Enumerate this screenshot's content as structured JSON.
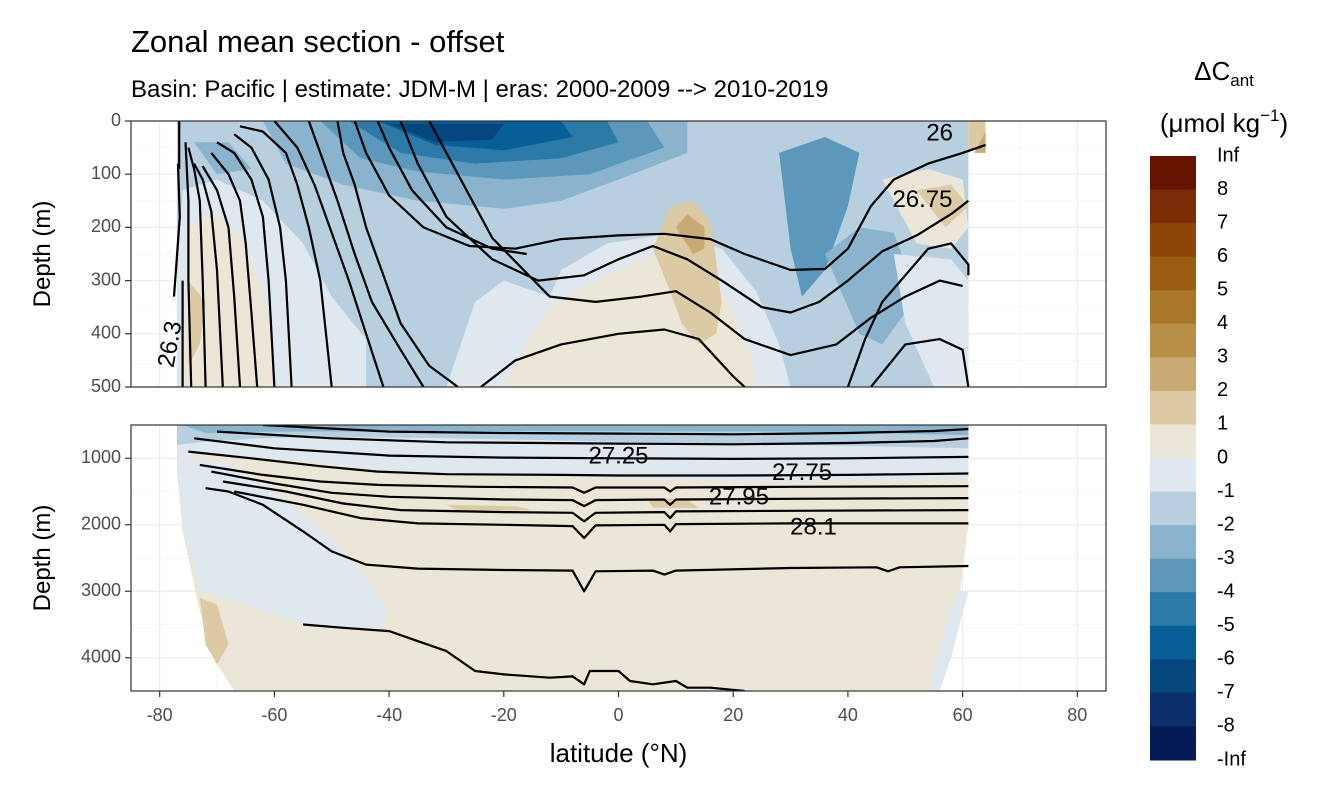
{
  "title": "Zonal mean section - offset",
  "subtitle": "Basin: Pacific | estimate: JDM-M | eras: 2000-2009 --> 2010-2019",
  "chart_data": {
    "type": "heatmap",
    "xlabel": "latitude (°N)",
    "ylabel": "Depth (m)",
    "xlim": [
      -85,
      85
    ],
    "x_ticks": [
      "-80",
      "-60",
      "-40",
      "-20",
      "0",
      "20",
      "40",
      "60",
      "80"
    ],
    "x_tick_values": [
      -80,
      -60,
      -40,
      -20,
      0,
      20,
      40,
      60,
      80
    ],
    "panels": [
      {
        "name": "upper",
        "ylim": [
          500,
          0
        ],
        "y_ticks": [
          "0",
          "100",
          "200",
          "300",
          "400",
          "500"
        ],
        "y_tick_values": [
          0,
          100,
          200,
          300,
          400,
          500
        ]
      },
      {
        "name": "lower",
        "ylim": [
          4500,
          500
        ],
        "y_ticks": [
          "1000",
          "2000",
          "3000",
          "4000"
        ],
        "y_tick_values": [
          1000,
          2000,
          3000,
          4000
        ]
      }
    ],
    "grid": true,
    "data_extent": {
      "lat_min": -77,
      "lat_max": 64
    },
    "contour_labels": [
      {
        "text": "26",
        "lat": 56,
        "depth": 25
      },
      {
        "text": "26.75",
        "lat": 53,
        "depth": 150
      },
      {
        "text": "26.3",
        "lat": -78,
        "depth": 420
      },
      {
        "text": "27.25",
        "lat": 0,
        "depth": 980
      },
      {
        "text": "27.75",
        "lat": 32,
        "depth": 1230
      },
      {
        "text": "27.95",
        "lat": 21,
        "depth": 1600
      },
      {
        "text": "28.1",
        "lat": 34,
        "depth": 2050
      }
    ],
    "legend": {
      "title_main": "ΔC",
      "title_sub": "ant",
      "unit_text": "(μmol kg",
      "unit_sup": "−1",
      "unit_close": ")",
      "placement": "right",
      "labels": [
        "Inf",
        "8",
        "7",
        "6",
        "5",
        "4",
        "3",
        "2",
        "1",
        "0",
        "-1",
        "-2",
        "-3",
        "-4",
        "-5",
        "-6",
        "-7",
        "-8",
        "-Inf"
      ],
      "colors": [
        "#661400",
        "#7c2c07",
        "#8e4509",
        "#9b5d12",
        "#a87828",
        "#b88f46",
        "#c8aa72",
        "#dccaa5",
        "#ece6d8",
        "#dfe8ee",
        "#b7cfdf",
        "#8ab4ce",
        "#5b98bb",
        "#2b7aa8",
        "#085f98",
        "#06467f",
        "#0a2f6a",
        "#041b56"
      ]
    }
  }
}
